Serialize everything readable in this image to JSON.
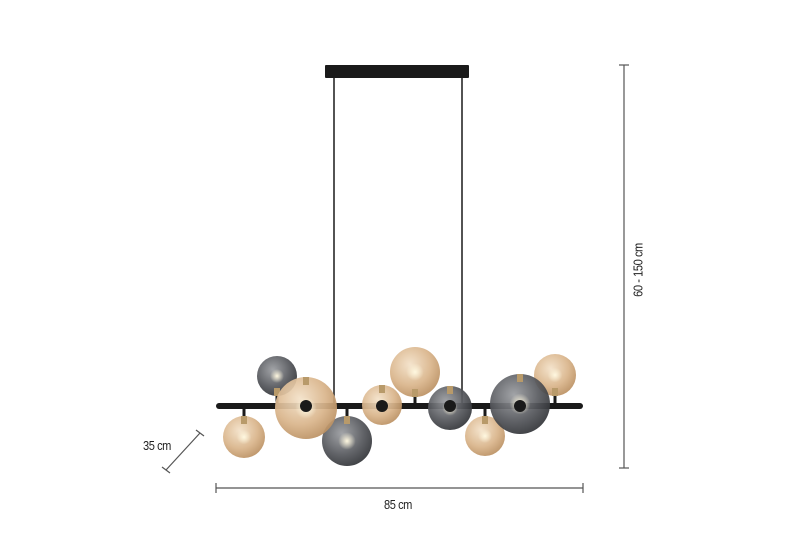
{
  "dimensions": {
    "height_label": "60 - 150 cm",
    "width_label": "85 cm",
    "depth_label": "35 cm"
  },
  "colors": {
    "amber": "#d9b48a",
    "smoke": "#55575c",
    "metal": "#1a1a1a",
    "dimension_line": "#555555"
  }
}
